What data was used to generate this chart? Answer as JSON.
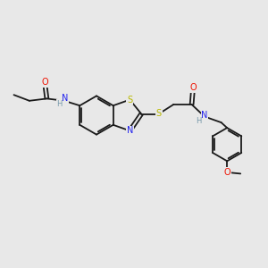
{
  "bg_color": "#e8e8e8",
  "bond_color": "#1a1a1a",
  "atom_colors": {
    "S": "#b8b800",
    "N": "#2222ee",
    "O": "#ee1100",
    "H": "#7799aa",
    "C": "#1a1a1a"
  },
  "figsize": [
    3.0,
    3.0
  ],
  "dpi": 100,
  "lw": 1.3,
  "fs": 6.5
}
